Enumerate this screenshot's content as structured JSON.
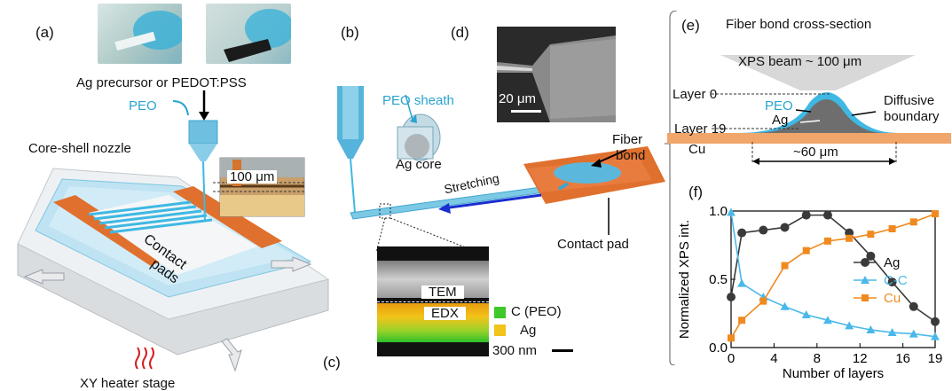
{
  "colors": {
    "copper": "#e0702e",
    "peo_blue": "#3fb8e3",
    "ag_series": "#3a3a3a",
    "cc_series": "#4ab9ea",
    "cu_series": "#f08a1f",
    "edx_green": "#3ec82a",
    "edx_yellow": "#f2c318"
  },
  "panel_a": {
    "letter": "(a)",
    "precursor_label": "Ag precursor or PEDOT:PSS",
    "peo_label": "PEO",
    "nozzle_label": "Core-shell nozzle",
    "scale_label": "100 μm",
    "pads_label_line1": "Contact",
    "pads_label_line2": "pads",
    "stage_label": "XY heater stage"
  },
  "panel_b": {
    "letter": "(b)",
    "sheath_label": "PEO sheath",
    "core_label": "Ag core",
    "stretch_label": "Stretching",
    "bond_label_line1": "Fiber",
    "bond_label_line2": "bond",
    "pad_label": "Contact pad"
  },
  "panel_c": {
    "letter": "(c)",
    "tem_label": "TEM",
    "edx_label": "EDX",
    "legend_c": "C (PEO)",
    "legend_ag": "Ag",
    "scale_label": "300 nm"
  },
  "panel_d": {
    "letter": "(d)",
    "scale_label": "20 μm"
  },
  "panel_e": {
    "letter": "(e)",
    "title": "Fiber bond cross-section",
    "beam_label": "XPS beam ~ 100 μm",
    "layer0": "Layer 0",
    "layer19": "Layer 19",
    "peo_label": "PEO",
    "ag_label": "Ag",
    "cu_label": "Cu",
    "boundary_line1": "Diffusive",
    "boundary_line2": "boundary",
    "width_label": "~60 μm"
  },
  "panel_f": {
    "letter": "(f)"
  },
  "chart_data": {
    "type": "line",
    "xlabel": "Number of layers",
    "ylabel": "Normalized XPS int.",
    "xlim": [
      0,
      19
    ],
    "ylim": [
      0.0,
      1.0
    ],
    "xticks": [
      "0",
      "4",
      "8",
      "12",
      "16",
      "19"
    ],
    "yticks": [
      "0.0",
      "0.5",
      "1.0"
    ],
    "legend_position": "center-right",
    "series": [
      {
        "name": "Ag",
        "color": "#3a3a3a",
        "marker": "circle",
        "x": [
          0,
          1,
          3,
          5,
          7,
          9,
          11,
          13,
          15,
          17,
          19
        ],
        "y": [
          0.37,
          0.84,
          0.86,
          0.88,
          0.97,
          0.97,
          0.84,
          0.67,
          0.48,
          0.3,
          0.19
        ]
      },
      {
        "name": "C-C",
        "color": "#4ab9ea",
        "marker": "triangle",
        "x": [
          0,
          1,
          3,
          5,
          7,
          9,
          11,
          13,
          15,
          17,
          19
        ],
        "y": [
          0.99,
          0.47,
          0.37,
          0.3,
          0.24,
          0.2,
          0.16,
          0.13,
          0.11,
          0.1,
          0.08
        ]
      },
      {
        "name": "Cu",
        "color": "#f08a1f",
        "marker": "square",
        "x": [
          0,
          1,
          3,
          5,
          7,
          9,
          11,
          13,
          15,
          17,
          19
        ],
        "y": [
          0.07,
          0.2,
          0.34,
          0.6,
          0.71,
          0.78,
          0.8,
          0.83,
          0.87,
          0.92,
          0.98
        ]
      }
    ]
  }
}
